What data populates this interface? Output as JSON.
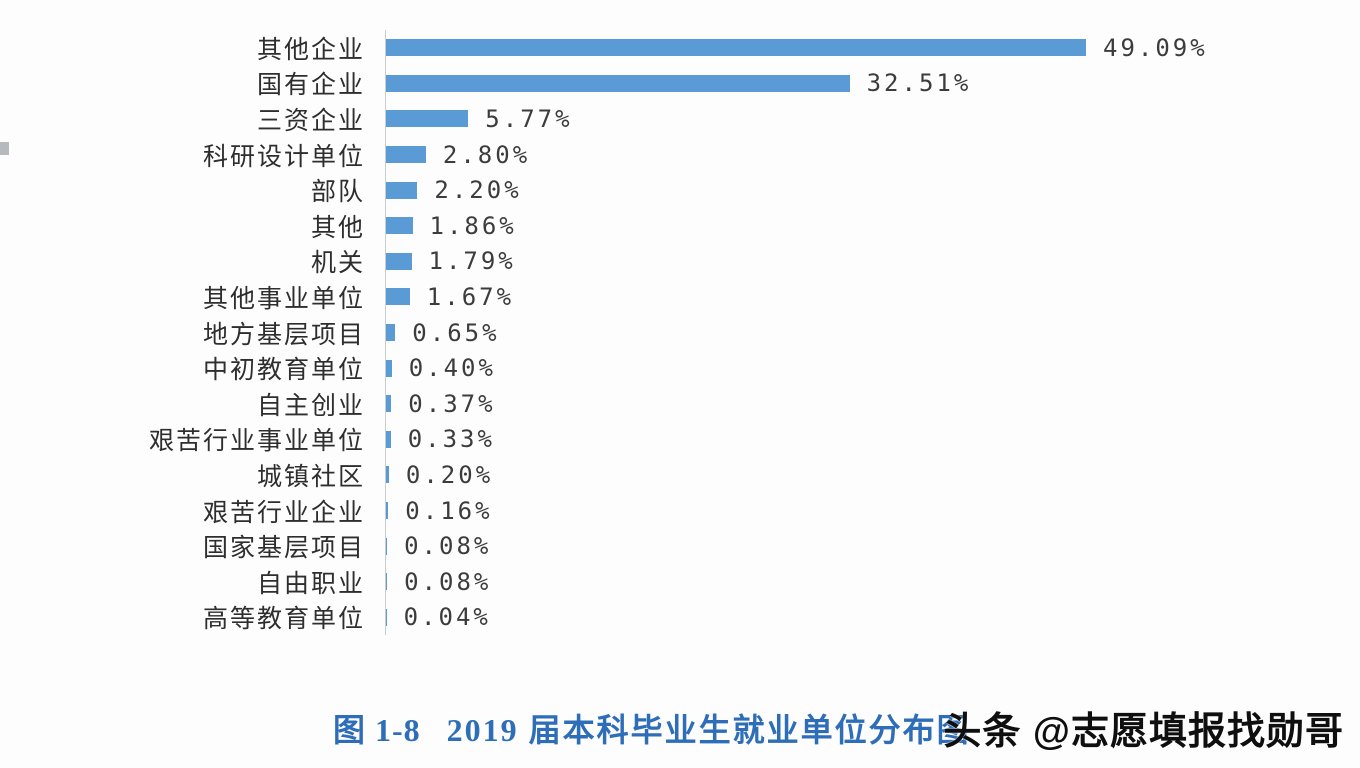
{
  "chart_data": {
    "type": "bar",
    "orientation": "horizontal",
    "title": "图 1-8 2019届本科毕业生就业单位分布图",
    "categories": [
      "其他企业",
      "国有企业",
      "三资企业",
      "科研设计单位",
      "部队",
      "其他",
      "机关",
      "其他事业单位",
      "地方基层项目",
      "中初教育单位",
      "自主创业",
      "艰苦行业事业单位",
      "城镇社区",
      "艰苦行业企业",
      "国家基层项目",
      "自由职业",
      "高等教育单位"
    ],
    "values": [
      49.09,
      32.51,
      5.77,
      2.8,
      2.2,
      1.86,
      1.79,
      1.67,
      0.65,
      0.4,
      0.37,
      0.33,
      0.2,
      0.16,
      0.08,
      0.08,
      0.04
    ],
    "value_labels": [
      "49.09%",
      "32.51%",
      "5.77%",
      "2.80%",
      "2.20%",
      "1.86%",
      "1.79%",
      "1.67%",
      "0.65%",
      "0.40%",
      "0.37%",
      "0.33%",
      "0.20%",
      "0.16%",
      "0.08%",
      "0.08%",
      "0.04%"
    ],
    "xlabel": "",
    "ylabel": "",
    "xlim": [
      0,
      52
    ],
    "grid": false,
    "legend": false,
    "data_labels": "outside-end",
    "bar_color": "#5B9BD5",
    "axis_line_color": "#c9cdd2"
  },
  "caption": {
    "figure_label": "图 1-8",
    "text": "2019 届本科毕业生就业单位分布图",
    "color": "#2e6db8"
  },
  "watermark": {
    "text": "头条 @志愿填报找勋哥"
  }
}
